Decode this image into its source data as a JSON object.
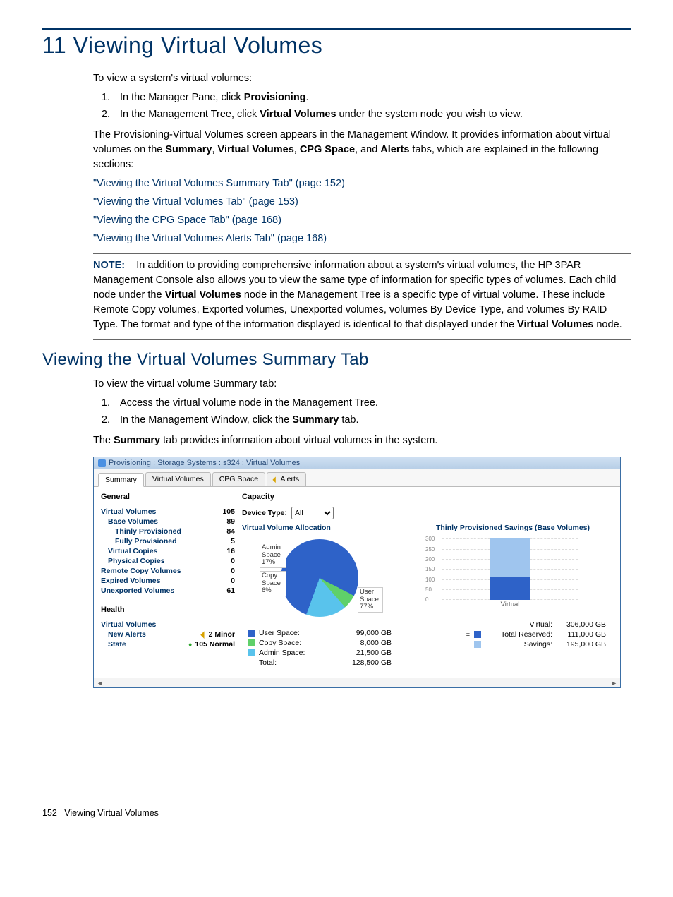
{
  "page": {
    "chapter_title": "11 Viewing Virtual Volumes",
    "intro": "To view a system's virtual volumes:",
    "step1_pre": "In the Manager Pane, click ",
    "step1_bold": "Provisioning",
    "step2_pre": "In the Management Tree, click ",
    "step2_bold": "Virtual Volumes",
    "step2_post": " under the system node you wish to view.",
    "para2_pre": "The Provisioning-Virtual Volumes screen appears in the Management Window. It provides information about virtual volumes on the ",
    "para2_b1": "Summary",
    "para2_m1": ", ",
    "para2_b2": "Virtual Volumes",
    "para2_m2": ", ",
    "para2_b3": "CPG Space",
    "para2_m3": ", and ",
    "para2_b4": "Alerts",
    "para2_post": " tabs, which are explained in the following sections:",
    "links": {
      "l1": "\"Viewing the Virtual Volumes Summary Tab\" (page 152)",
      "l2": "\"Viewing the Virtual Volumes Tab\" (page 153)",
      "l3": "\"Viewing the CPG Space Tab\" (page 168)",
      "l4": "\"Viewing the Virtual Volumes Alerts Tab\" (page 168)"
    },
    "note_label": "NOTE:",
    "note_pre": "In addition to providing comprehensive information about a system's virtual volumes, the HP 3PAR Management Console also allows you to view the same type of information for specific types of volumes. Each child node under the ",
    "note_b1": "Virtual Volumes",
    "note_mid": " node in the Management Tree is a specific type of virtual volume. These include Remote Copy volumes, Exported volumes, Unexported volumes, volumes By Device Type, and volumes By RAID Type. The format and type of the information displayed is identical to that displayed under the ",
    "note_b2": "Virtual Volumes",
    "note_post": " node.",
    "h2": "Viewing the Virtual Volumes Summary Tab",
    "sub_intro": "To view the virtual volume Summary tab:",
    "sub_s1": "Access the virtual volume node in the Management Tree.",
    "sub_s2_pre": "In the Management Window, click the ",
    "sub_s2_bold": "Summary",
    "sub_s2_post": " tab.",
    "sub_para_pre": "The ",
    "sub_para_bold": "Summary",
    "sub_para_post": " tab provides information about virtual volumes in the system.",
    "footer_num": "152",
    "footer_txt": "Viewing Virtual Volumes"
  },
  "shot": {
    "title": "Provisioning : Storage Systems : s324 : Virtual Volumes",
    "tabs": {
      "t1": "Summary",
      "t2": "Virtual Volumes",
      "t3": "CPG Space",
      "t4": "Alerts"
    },
    "general_title": "General",
    "capacity_title": "Capacity",
    "gen": {
      "r1k": "Virtual Volumes",
      "r1v": "105",
      "r2k": "Base Volumes",
      "r2v": "89",
      "r3k": "Thinly Provisioned",
      "r3v": "84",
      "r4k": "Fully Provisioned",
      "r4v": "5",
      "r5k": "Virtual Copies",
      "r5v": "16",
      "r6k": "Physical Copies",
      "r6v": "0",
      "r7k": "Remote Copy Volumes",
      "r7v": "0",
      "r8k": "Expired Volumes",
      "r8v": "0",
      "r9k": "Unexported Volumes",
      "r9v": "61"
    },
    "health_title": "Health",
    "health": {
      "sub": "Virtual Volumes",
      "alerts_k": "New Alerts",
      "alerts_v": "2 Minor",
      "state_k": "State",
      "state_v": "105 Normal"
    },
    "device_type_lbl": "Device Type:",
    "device_type_val": "All",
    "alloc_title": "Virtual Volume Allocation",
    "savings_title": "Thinly Provisioned Savings (Base Volumes)",
    "pie": {
      "user_pct": 77,
      "admin_pct": 17,
      "copy_pct": 6,
      "user_lbl": "User Space 77%",
      "admin_lbl": "Admin Space 17%",
      "copy_lbl": "Copy Space 6%",
      "colors": {
        "user": "#2e62c8",
        "admin": "#59c3ec",
        "copy": "#5fd06a"
      }
    },
    "alloc_legend": {
      "r1l": "User Space:",
      "r1v": "99,000 GB",
      "r2l": "Copy Space:",
      "r2v": "8,000 GB",
      "r3l": "Admin Space:",
      "r3v": "21,500 GB",
      "r4l": "Total:",
      "r4v": "128,500 GB"
    },
    "bar": {
      "ymax": 300,
      "step": 50,
      "t300": "300",
      "t250": "250",
      "t200": "200",
      "t150": "150",
      "t100": "100",
      "t50": "50",
      "t0": "0",
      "cat": "Virtual",
      "reserved": 111,
      "savings": 195,
      "colors": {
        "reserved": "#2e62c8",
        "savings": "#9fc5ee"
      }
    },
    "savings_legend": {
      "r1l": "Virtual:",
      "r1v": "306,000 GB",
      "r2l": "Total Reserved:",
      "r2v": "111,000 GB",
      "r3l": "Savings:",
      "r3v": "195,000 GB"
    }
  }
}
